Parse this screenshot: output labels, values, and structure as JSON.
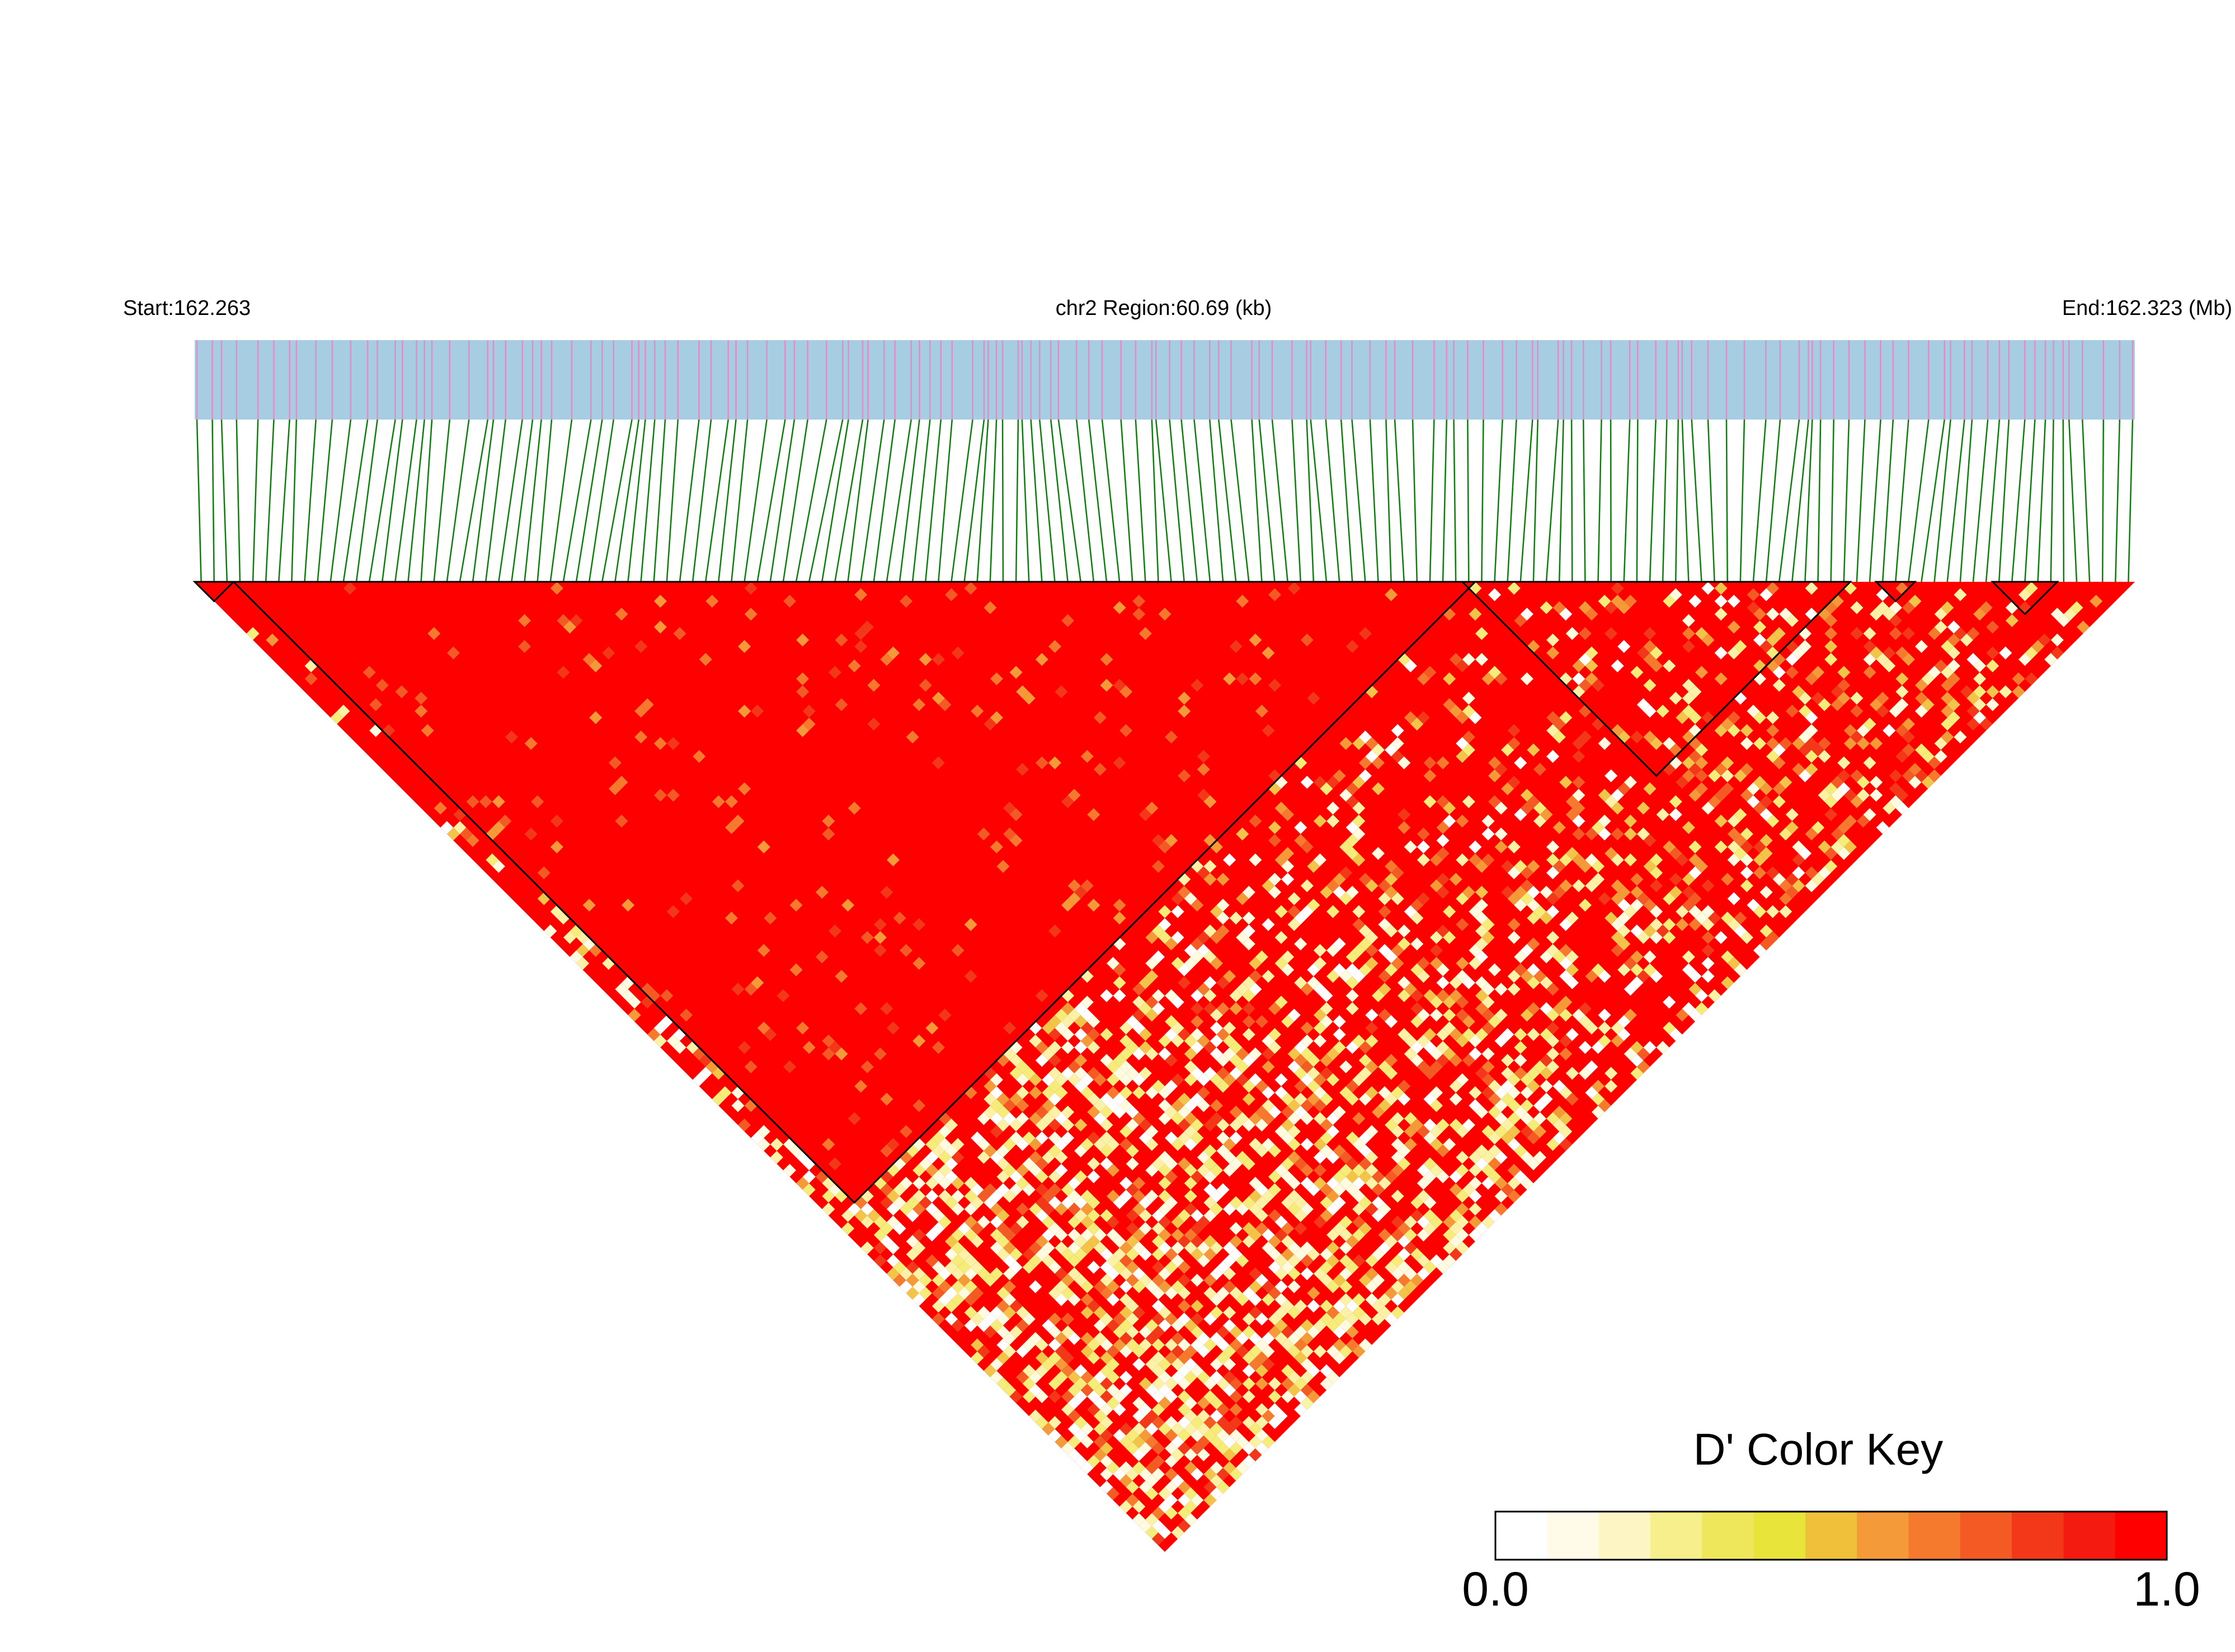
{
  "header": {
    "start_label": "Start:162.263",
    "region_label": "chr2 Region:60.69 (kb)",
    "end_label": "End:162.323 (Mb)"
  },
  "track": {
    "marker_count": 150,
    "background_color": "#a6cde2",
    "marker_color": "#e28cc8",
    "connector_color": "#0a7d0a"
  },
  "heatmap": {
    "snp_count": 150,
    "base_color": "#ff0000",
    "ld_blocks": [
      [
        0,
        2
      ],
      [
        3,
        98
      ],
      [
        98,
        127
      ],
      [
        130,
        132
      ],
      [
        139,
        143
      ]
    ]
  },
  "legend": {
    "title": "D' Color Key",
    "min_label": "0.0",
    "max_label": "1.0",
    "min_value": 0.0,
    "max_value": 1.0,
    "colors": [
      "#ffffff",
      "#fffbe8",
      "#fdf6c4",
      "#f7ef8c",
      "#eee75c",
      "#e8e43a",
      "#f1c03a",
      "#f59a38",
      "#f57a2e",
      "#f45a24",
      "#f3381a",
      "#f51a10",
      "#ff0000"
    ]
  }
}
